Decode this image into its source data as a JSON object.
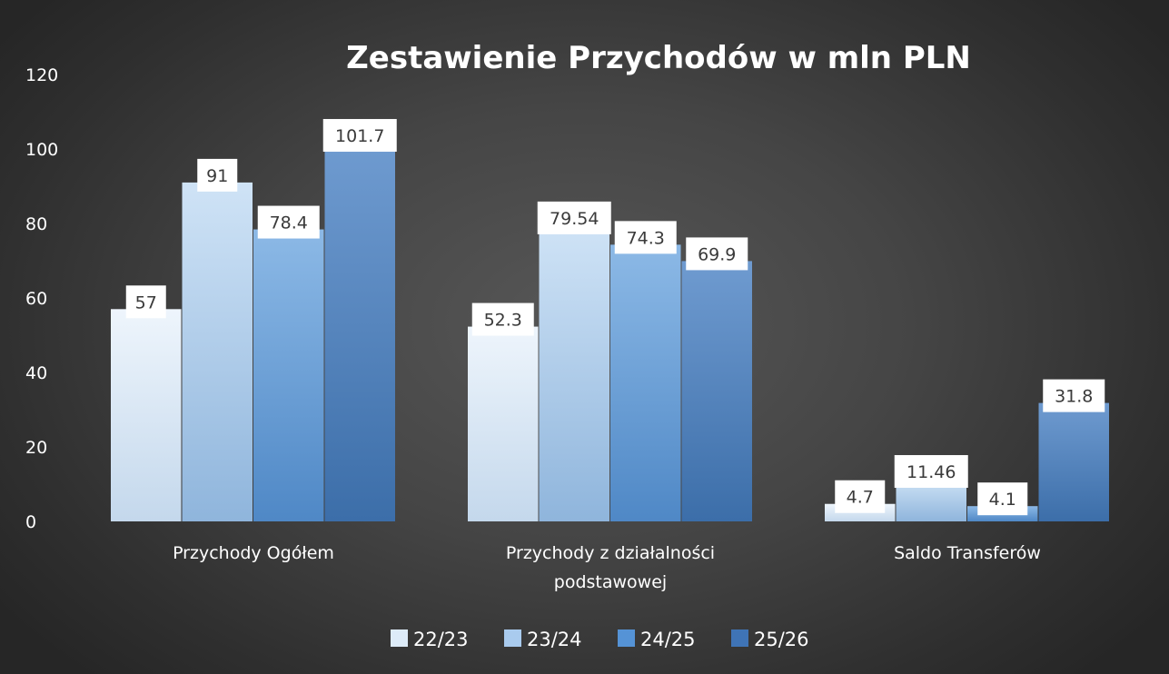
{
  "chart_data": {
    "type": "bar",
    "title": "Zestawienie Przychodów w mln PLN",
    "categories": [
      [
        "Przychody Ogółem"
      ],
      [
        "Przychody z działalności",
        "podstawowej"
      ],
      [
        "Saldo Transferów"
      ]
    ],
    "series": [
      {
        "name": "22/23",
        "values": [
          57,
          52.3,
          4.7
        ],
        "labels": [
          "57",
          "52.3",
          "4.7"
        ]
      },
      {
        "name": "23/24",
        "values": [
          91,
          79.54,
          11.46
        ],
        "labels": [
          "91",
          "79.54",
          "11.46"
        ]
      },
      {
        "name": "24/25",
        "values": [
          78.4,
          74.3,
          4.1
        ],
        "labels": [
          "78.4",
          "74.3",
          "4.1"
        ]
      },
      {
        "name": "25/26",
        "values": [
          101.7,
          69.9,
          31.8
        ],
        "labels": [
          "101.7",
          "69.9",
          "31.8"
        ]
      }
    ],
    "ylim": [
      0,
      120
    ],
    "yticks": [
      0,
      20,
      40,
      60,
      80,
      100,
      120
    ],
    "grid": false,
    "legend_position": "bottom",
    "colors": {
      "series": [
        [
          "#eef5fc",
          "#c4d8ec"
        ],
        [
          "#cfe3f6",
          "#8fb5dc"
        ],
        [
          "#8cb9e6",
          "#4f88c6"
        ],
        [
          "#6f9bd0",
          "#3c6ea9"
        ]
      ],
      "legend": [
        "#ddebf8",
        "#a9cbee",
        "#5593d6",
        "#3f74b6"
      ],
      "text": "#ffffff",
      "label_box": "#ffffff",
      "label_text": "#3a3a3a"
    }
  }
}
